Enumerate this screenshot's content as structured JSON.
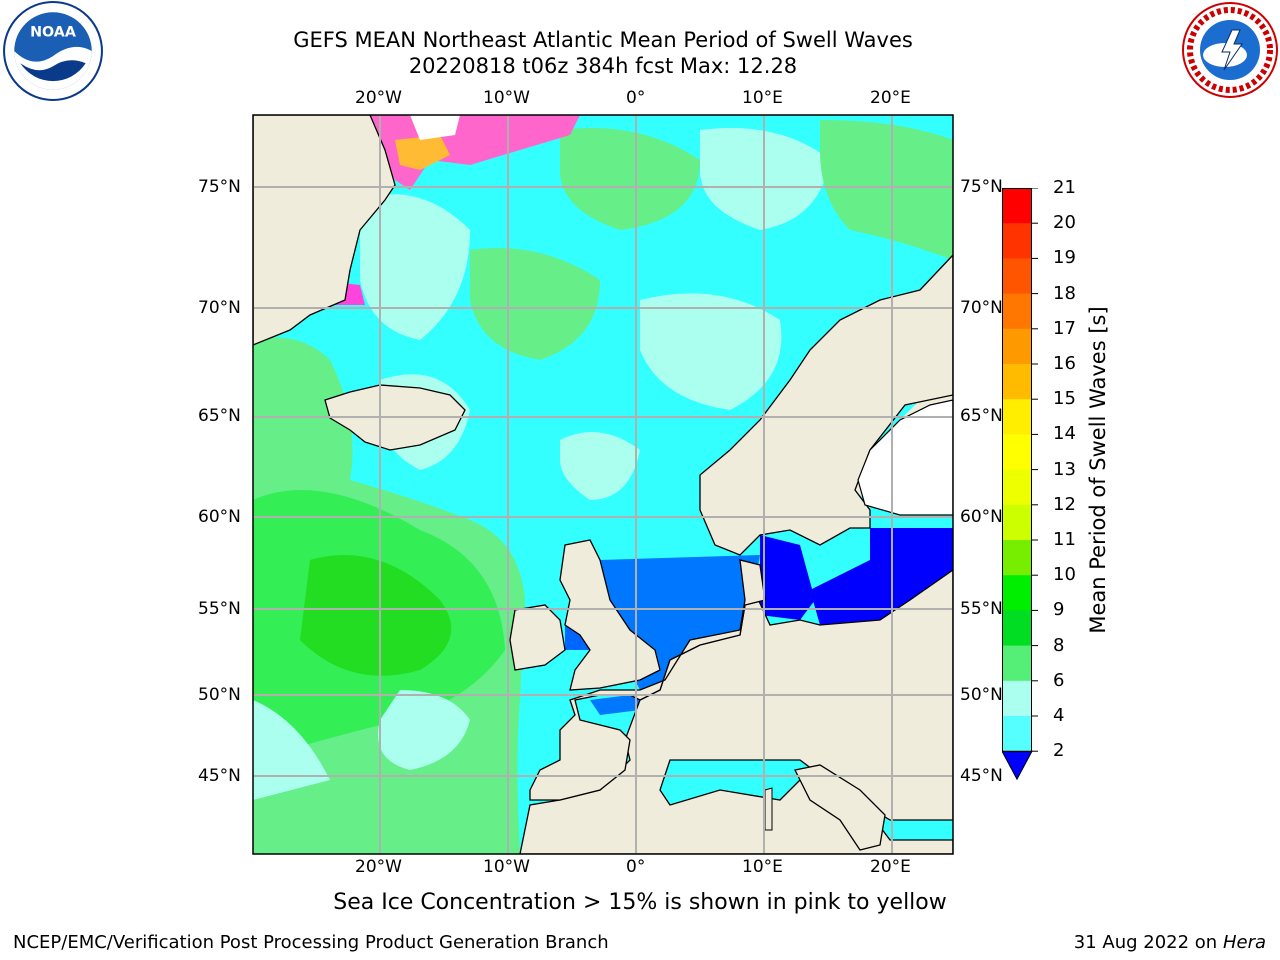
{
  "header": {
    "title_line1": "GEFS MEAN Northeast Atlantic Mean Period of Swell Waves",
    "title_line2": "20220818 t06z 384h fcst   Max: 12.28"
  },
  "logos": {
    "left": "NOAA",
    "right": "NATIONAL WEATHER SERVICE"
  },
  "map": {
    "lon_labels": [
      "20°W",
      "10°W",
      "0°",
      "10°E",
      "20°E"
    ],
    "lat_labels": [
      "75°N",
      "70°N",
      "65°N",
      "60°N",
      "55°N",
      "50°N",
      "45°N"
    ],
    "land_color": "#efecdc",
    "grid_color": "#b0b0b0"
  },
  "colorbar": {
    "label": "Mean Period of Swell Waves [s]",
    "ticks": [
      "21",
      "20",
      "19",
      "18",
      "17",
      "16",
      "15",
      "14",
      "13",
      "12",
      "11",
      "10",
      "9",
      "8",
      "6",
      "4",
      "2"
    ],
    "colors": [
      "#ff0000",
      "#ff3300",
      "#ff5500",
      "#ff7700",
      "#ff9900",
      "#ffbb00",
      "#ffee00",
      "#ffff00",
      "#eeff00",
      "#ccff00",
      "#77ee00",
      "#00ee00",
      "#00dd22",
      "#55ee77",
      "#aaffee",
      "#55ffff",
      "#00eeff",
      "#0077ff"
    ],
    "underflow_color": "#0000ff"
  },
  "footer": {
    "note": "Sea Ice Concentration > 15% is shown in pink to yellow",
    "left": "NCEP/EMC/Verification Post Processing Product Generation Branch",
    "right_date": "31 Aug 2022 on",
    "right_machine": "Hera"
  }
}
